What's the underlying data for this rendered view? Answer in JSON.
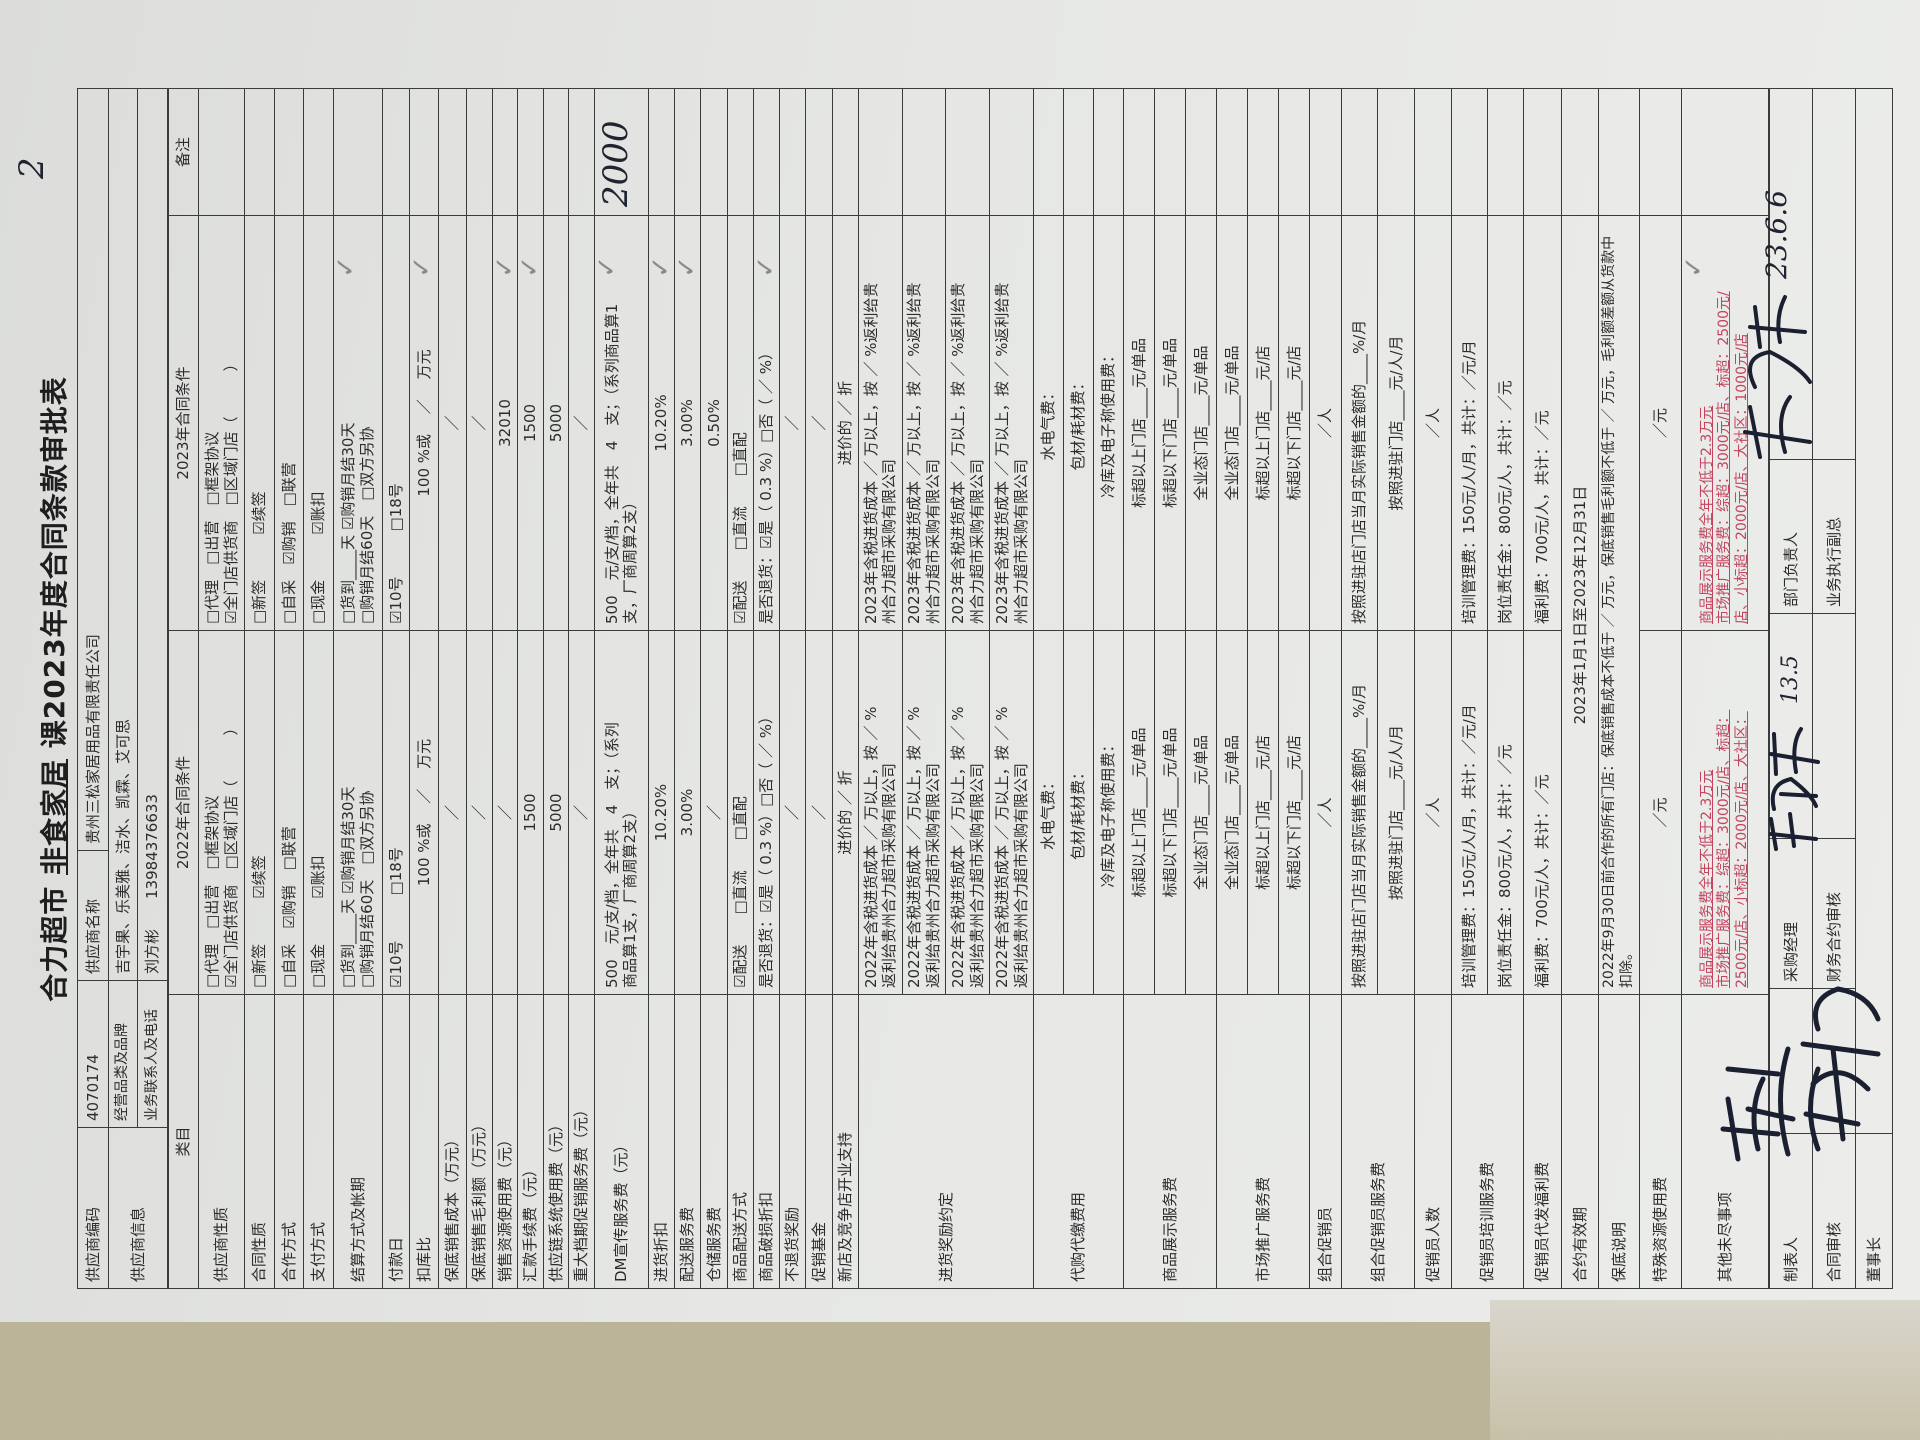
{
  "title": {
    "prefix": "合力超市 ",
    "dept": "非食家居",
    "suffix": " 课2023年度合同条款审批表"
  },
  "supplier": {
    "code_label": "供应商编码",
    "code": "4070174",
    "name_label": "供应商名称",
    "name": "贵州三松家居用品有限责任公司",
    "info_label": "供应商信息",
    "brands_label": "经营品类及品牌",
    "brands": "吉宇果、乐美雅、洁水、凯霖、艾可思",
    "contact_label": "业务联系人及电话",
    "contact": "刘方彬　　13984376633"
  },
  "main": {
    "header": {
      "category": "类目",
      "y2022": "2022年合同条件",
      "y2023": "2023年合同条件",
      "remarks": "备注"
    },
    "rows": [
      {
        "label": "供应商性质",
        "y2022": [
          "□代理　□出营　□框架协议",
          "☑全门店供货商　□区域门店（　　　）"
        ],
        "y2023": [
          "□代理　□出营　□框架协议",
          "☑全门店供货商　□区域门店（　　　）"
        ]
      },
      {
        "label": "合同性质",
        "y2022": "□新签　　　☑续签",
        "y2023": "□新签　　　☑续签"
      },
      {
        "label": "合作方式",
        "y2022": "□自采　☑购销　□联营",
        "y2023": "□自采　☑购销　□联营"
      },
      {
        "label": "支付方式",
        "y2022": "□现金　　　☑账扣",
        "y2023": "□现金　　　☑账扣"
      },
      {
        "label": "结算方式及帐期",
        "y2022": [
          "□货到____天 ☑购销月结30天",
          "□购销月结60天　□双方另协"
        ],
        "y2023": [
          "□货到____天 ☑购销月结30天",
          "□购销月结60天　□双方另协"
        ]
      },
      {
        "label": "付款日",
        "y2022": "☑10号　　　□18号",
        "y2023": "☑10号　　　□18号"
      },
      {
        "label": "扣库比",
        "y2022": "100 %或　 ／　 万元",
        "y2023": "100 %或　 ／　 万元"
      },
      {
        "label": "保底销售成本（万元）",
        "y2022": "／",
        "y2023": "／"
      },
      {
        "label": "保底销售毛利额（万元）",
        "y2022": "／",
        "y2023": "／"
      },
      {
        "label": "销售资源使用费（元）",
        "y2022": "／",
        "y2023": "32010"
      },
      {
        "label": "汇款手续费（元）",
        "y2022": "1500",
        "y2023": "1500"
      },
      {
        "label": "供应链系统使用费（元）",
        "y2022": "5000",
        "y2023": "5000"
      },
      {
        "label": "重大档期促销服务费（元）",
        "y2022": "／",
        "y2023": "／"
      },
      {
        "label": "DM宣传服务费（元）",
        "y2022": [
          "500　元/支/档，全年共　4　支；（系列",
          "商品算1支，厂商周算2支）"
        ],
        "y2023": [
          "500　元/支/档，全年共　4　支；（系列商品算1",
          "支，厂商周算2支）"
        ]
      },
      {
        "label": "进货折扣",
        "y2022": "10.20%",
        "y2023": "10.20%"
      },
      {
        "label": "配送服务费",
        "y2022": "3.00%",
        "y2023": "3.00%"
      },
      {
        "label": "仓储服务费",
        "y2022": "／",
        "y2023": "0.50%"
      },
      {
        "label": "商品配送方式",
        "y2022": "☑配送　　□直流　　□直配",
        "y2023": "☑配送　　□直流　　□直配"
      },
      {
        "label": "商品破损折扣",
        "y2022": "是否退货：☑是（ 0.3 %）□否（ ／ %）",
        "y2023": "是否退货：☑是（ 0.3 %）□否（ ／ %）"
      },
      {
        "label": "不退货奖励",
        "y2022": "／",
        "y2023": "／"
      },
      {
        "label": "促销基金",
        "y2022": "／",
        "y2023": "／"
      },
      {
        "label": "新店及竞争店开业支持",
        "y2022": "进价的 ／ 折",
        "y2023": "进价的 ／ 折"
      },
      {
        "label": "进货奖励约定",
        "subs": [
          {
            "y2022": [
              "2022年含税进货成本 ／ 万以上，按 ／ %",
              "返利给贵州合力超市采购有限公司"
            ],
            "y2023": [
              "2023年含税进货成本 ／ 万以上，按 ／ %返利给贵",
              "州合力超市采购有限公司"
            ]
          },
          {
            "y2022": [
              "2022年含税进货成本 ／ 万以上，按 ／ %",
              "返利给贵州合力超市采购有限公司"
            ],
            "y2023": [
              "2023年含税进货成本 ／ 万以上，按 ／ %返利给贵",
              "州合力超市采购有限公司"
            ]
          },
          {
            "y2022": [
              "2022年含税进货成本 ／ 万以上，按 ／ %",
              "返利给贵州合力超市采购有限公司"
            ],
            "y2023": [
              "2023年含税进货成本 ／ 万以上，按 ／ %返利给贵",
              "州合力超市采购有限公司"
            ]
          },
          {
            "y2022": [
              "2022年含税进货成本 ／ 万以上，按 ／ %",
              "返利给贵州合力超市采购有限公司"
            ],
            "y2023": [
              "2023年含税进货成本 ／ 万以上，按 ／ %返利给贵",
              "州合力超市采购有限公司"
            ]
          }
        ]
      },
      {
        "label": "代购代缴费用",
        "subs": [
          {
            "y2022": "水电气费：",
            "y2023": "水电气费："
          },
          {
            "y2022": "包材/耗材费：",
            "y2023": "包材/耗材费："
          },
          {
            "y2022": "冷库及电子称使用费：",
            "y2023": "冷库及电子称使用费："
          }
        ]
      },
      {
        "label": "商品展示服务费",
        "subs": [
          {
            "y2022": "标超以上门店____元/单品",
            "y2023": "标超以上门店____元/单品"
          },
          {
            "y2022": "标超以下门店____元/单品",
            "y2023": "标超以下门店____元/单品"
          },
          {
            "y2022": "全业态门店____元/单品",
            "y2023": "全业态门店____元/单品"
          }
        ]
      },
      {
        "label": "市场推广服务费",
        "subs": [
          {
            "y2022": "全业态门店____元/单品",
            "y2023": "全业态门店____元/单品"
          },
          {
            "y2022": "标超以上门店____元/店",
            "y2023": "标超以上门店____元/店"
          },
          {
            "y2022": "标超以下门店____元/店",
            "y2023": "标超以下门店____元/店"
          }
        ]
      },
      {
        "label": "组合促销员",
        "y2022": "／人",
        "y2023": "／人"
      },
      {
        "label": "组合促销员服务费",
        "subs": [
          {
            "y2022": "按照进驻店门店当月实际销售金额的____%/月",
            "y2023": "按照进驻店门店当月实际销售金额的____%/月"
          },
          {
            "y2022": "按照进驻门店____元/人/月",
            "y2023": "按照进驻门店____元/人/月"
          }
        ]
      },
      {
        "label": "促销员人数",
        "y2022": "／人",
        "y2023": "／人"
      },
      {
        "label": "促销员培训服务费",
        "subs": [
          {
            "y2022": "培训管理费：150元/人/月，共计：／元/月",
            "y2023": "培训管理费：150元/人/月，共计：／元/月"
          },
          {
            "y2022": "岗位责任金：800元/人，共计：／元",
            "y2023": "岗位责任金：800元/人，共计：／元"
          }
        ]
      },
      {
        "label": "促销员代发福利费",
        "y2022": "福利费：700元/人，共计：／元",
        "y2023": "福利费：700元/人，共计：／元"
      },
      {
        "label": "合约有效期",
        "merged": "2023年1月1日至2023年12月31日"
      },
      {
        "label": "保底说明",
        "merged": "2022年9月30日前合作的所有门店：保底销售成本不低于 ／ 万元，保底销售毛利额不低于 ／ 万元，毛利额差额从货款中扣除。"
      },
      {
        "label": "特殊资源使用费",
        "y2022": "／元",
        "y2023": "／元"
      },
      {
        "label": "其他未尽事项",
        "y2022": [
          "商品展示服务费全年不低于2.3万元",
          "市场推广服务费：综超：3000元/店、标超：",
          "2500元/店、小标超：2000元/店、大社区："
        ],
        "y2023": [
          "商品展示服务费全年不低于2.3万元",
          "市场推广服务费：综超：3000元/店、标超：2500元/",
          "店、小标超：2000元/店、大社区：1000元/店"
        ]
      }
    ]
  },
  "approvals": {
    "preparer_label": "制表人",
    "purchasing_manager_label": "采购经理",
    "dept_head_label": "部门负责人",
    "contract_review_label": "合同审核",
    "finance_review_label": "财务合约审核",
    "exec_vp_label": "业务执行副总",
    "chairman_label": "董事长"
  },
  "handwriting": {
    "page_number": "2",
    "dm_remark": "2000",
    "purchasing_manager_date": "13.5",
    "dept_head_date": "23.6.6"
  },
  "colors": {
    "ink": "#2c2c2c",
    "red_note": "#c2455e",
    "paper": "#e6e7e5",
    "desk": "#bcb499"
  }
}
